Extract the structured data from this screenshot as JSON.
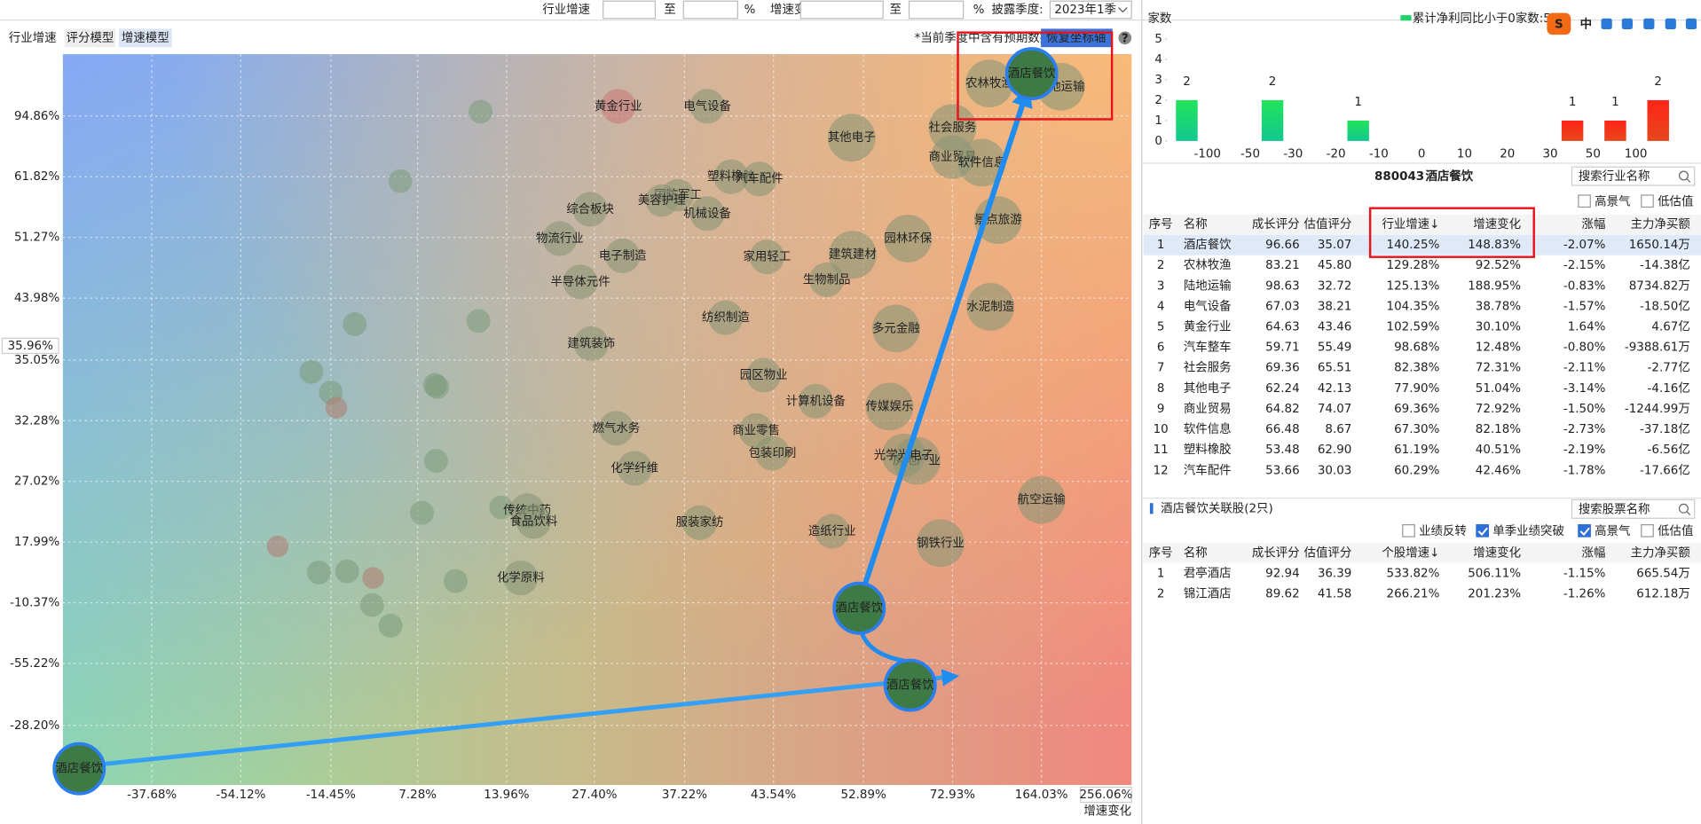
{
  "filter": {
    "industry_growth_label": "行业增速",
    "to_1": "至",
    "percent_1": "%",
    "change_label": "增速变化:",
    "to_2": "至",
    "percent_2": "%",
    "quarter_label": "披露季度:",
    "quarter_value": "2023年1季"
  },
  "tabs": {
    "title": "行业增速",
    "items": [
      "评分模型",
      "增速模型"
    ]
  },
  "notice": "*当前季度中含有预期数据",
  "reset_button": "恢复坐标轴",
  "help": "?",
  "plot": {
    "y_labels": [
      "94.86%",
      "61.82%",
      "51.27%",
      "43.98%",
      "35.05%",
      "32.28%",
      "27.02%",
      "17.99%",
      "-10.37%",
      "-55.22%",
      "-28.20%"
    ],
    "y_current": "35.96%",
    "x_labels": [
      "-37.68%",
      "-54.12%",
      "-14.45%",
      "7.28%",
      "13.96%",
      "27.40%",
      "37.22%",
      "43.54%",
      "52.89%",
      "72.93%",
      "164.03%"
    ],
    "x_current": "256.06%",
    "x_axis_name": "增速变化",
    "bubble_labels": [
      "黄金行业",
      "电气设备",
      "其他电子",
      "社会服务",
      "商业贸易",
      "软件信息",
      "农林牧渔",
      "陆地运输",
      "国防军工",
      "美容护理",
      "塑料橡胶",
      "汽车配件",
      "机械设备",
      "综合板块",
      "物流行业",
      "电子制造",
      "家用轻工",
      "建筑建材",
      "园林环保",
      "景点旅游",
      "半导体元件",
      "生物制品",
      "纺织制造",
      "建筑装饰",
      "多元金融",
      "水泥制造",
      "园区物业",
      "计算机设备",
      "传媒娱乐",
      "燃气水务",
      "商业零售",
      "包装印刷",
      "房地产业",
      "光学光电子",
      "化学纤维",
      "航空运输",
      "传统中药",
      "食品饮料",
      "服装家纺",
      "造纸行业",
      "钢铁行业",
      "化学原料"
    ],
    "trail": [
      "酒店餐饮",
      "酒店餐饮",
      "酒店餐饮",
      "酒店餐饮"
    ]
  },
  "mini_chart": {
    "y_label": "家数",
    "legend": "累计净利同比小于0家数:5",
    "ylim": [
      0,
      5
    ],
    "yticks": [
      0,
      1,
      2,
      3,
      4,
      5
    ],
    "bin_labels": [
      "-100",
      "-50",
      "-30",
      "-20",
      "-10",
      "0",
      "10",
      "20",
      "30",
      "50",
      "100"
    ],
    "counts": [
      2,
      0,
      2,
      0,
      1,
      0,
      0,
      0,
      0,
      1,
      1,
      2
    ],
    "negative_color": "#1ed36a",
    "positive_color": "#f5301c"
  },
  "ime_toolbar": {
    "logo": "S",
    "lang": "中"
  },
  "industry": {
    "code": "880043",
    "name": "酒店餐饮",
    "search": "搜索行业名称",
    "checkboxes": [
      "高景气",
      "低估值"
    ],
    "columns": [
      "序号",
      "名称",
      "成长评分",
      "估值评分",
      "行业增速↓",
      "增速变化",
      "涨幅",
      "主力净买额"
    ],
    "rows": [
      [
        "1",
        "酒店餐饮",
        "96.66",
        "35.07",
        "140.25%",
        "148.83%",
        "-2.07%",
        "1650.14万"
      ],
      [
        "2",
        "农林牧渔",
        "83.21",
        "45.80",
        "129.28%",
        "92.52%",
        "-2.15%",
        "-14.38亿"
      ],
      [
        "3",
        "陆地运输",
        "98.63",
        "32.72",
        "125.13%",
        "188.95%",
        "-0.83%",
        "8734.82万"
      ],
      [
        "4",
        "电气设备",
        "67.03",
        "38.21",
        "104.35%",
        "38.78%",
        "-1.57%",
        "-18.50亿"
      ],
      [
        "5",
        "黄金行业",
        "64.63",
        "43.46",
        "102.59%",
        "30.10%",
        "1.64%",
        "4.67亿"
      ],
      [
        "6",
        "汽车整车",
        "59.71",
        "55.49",
        "98.68%",
        "12.48%",
        "-0.80%",
        "-9388.61万"
      ],
      [
        "7",
        "社会服务",
        "69.36",
        "65.51",
        "82.38%",
        "72.31%",
        "-2.11%",
        "-2.77亿"
      ],
      [
        "8",
        "其他电子",
        "62.24",
        "42.13",
        "77.90%",
        "51.04%",
        "-3.14%",
        "-4.16亿"
      ],
      [
        "9",
        "商业贸易",
        "64.82",
        "74.07",
        "69.36%",
        "72.92%",
        "-1.50%",
        "-1244.99万"
      ],
      [
        "10",
        "软件信息",
        "66.48",
        "8.67",
        "67.30%",
        "82.18%",
        "-2.73%",
        "-37.18亿"
      ],
      [
        "11",
        "塑料橡胶",
        "53.48",
        "62.90",
        "61.19%",
        "40.51%",
        "-2.19%",
        "-6.56亿"
      ],
      [
        "12",
        "汽车配件",
        "53.66",
        "30.03",
        "60.29%",
        "42.46%",
        "-1.78%",
        "-17.66亿"
      ]
    ]
  },
  "stocks": {
    "title": "酒店餐饮关联股(2只)",
    "search": "搜索股票名称",
    "checkboxes": [
      {
        "label": "业绩反转",
        "checked": false
      },
      {
        "label": "单季业绩突破",
        "checked": true
      },
      {
        "label": "高景气",
        "checked": true
      },
      {
        "label": "低估值",
        "checked": false
      }
    ],
    "columns": [
      "序号",
      "名称",
      "成长评分",
      "估值评分",
      "个股增速↓",
      "增速变化",
      "涨幅",
      "主力净买额"
    ],
    "rows": [
      [
        "1",
        "君亭酒店",
        "92.94",
        "36.39",
        "533.82%",
        "506.11%",
        "-1.15%",
        "665.54万"
      ],
      [
        "2",
        "锦江酒店",
        "89.62",
        "41.58",
        "266.21%",
        "201.23%",
        "-1.26%",
        "612.18万"
      ]
    ]
  }
}
